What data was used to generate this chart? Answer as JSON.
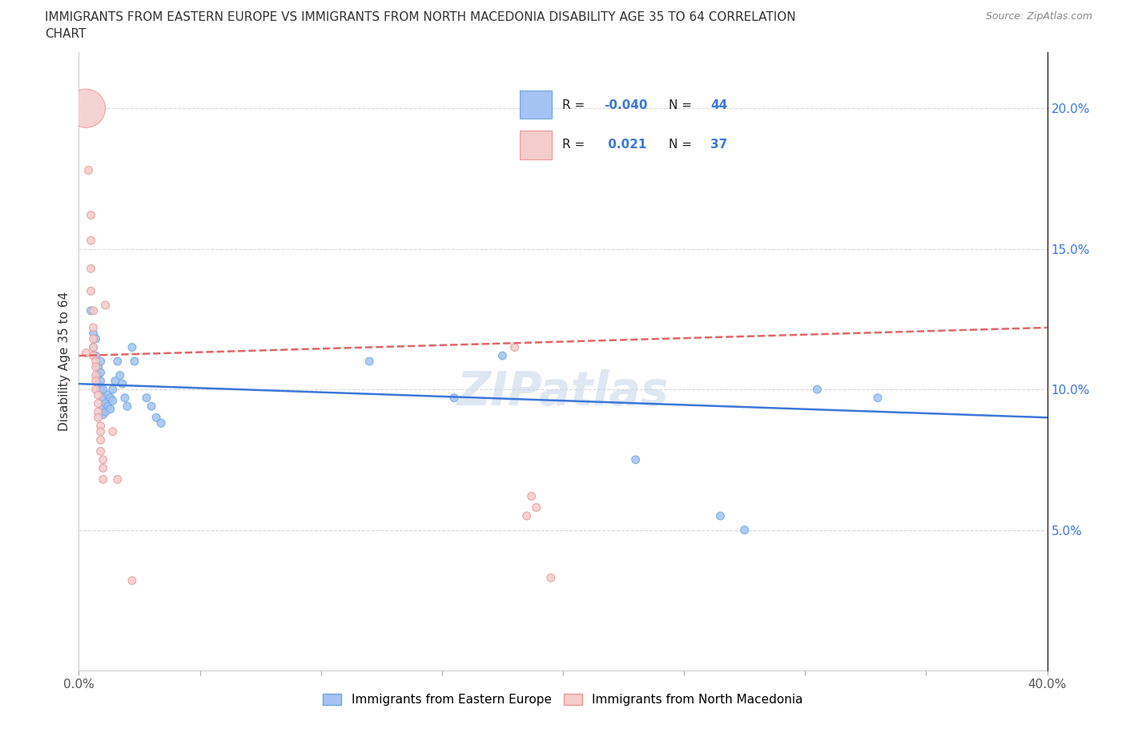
{
  "title_line1": "IMMIGRANTS FROM EASTERN EUROPE VS IMMIGRANTS FROM NORTH MACEDONIA DISABILITY AGE 35 TO 64 CORRELATION",
  "title_line2": "CHART",
  "source": "Source: ZipAtlas.com",
  "ylabel": "Disability Age 35 to 64",
  "xlim": [
    0.0,
    0.4
  ],
  "ylim": [
    0.0,
    0.22
  ],
  "blue_color": "#a4c2f4",
  "blue_edge_color": "#6fa8dc",
  "pink_color": "#f4cccc",
  "pink_edge_color": "#ea9999",
  "blue_line_color": "#3c78d8",
  "pink_line_color": "#e06666",
  "R_blue": -0.04,
  "N_blue": 44,
  "R_pink": 0.021,
  "N_pink": 37,
  "legend_label_blue": "Immigrants from Eastern Europe",
  "legend_label_pink": "Immigrants from North Macedonia",
  "watermark": "ZIPatlas",
  "blue_points": [
    [
      0.005,
      0.128
    ],
    [
      0.006,
      0.12
    ],
    [
      0.006,
      0.115
    ],
    [
      0.007,
      0.118
    ],
    [
      0.007,
      0.112
    ],
    [
      0.008,
      0.108
    ],
    [
      0.008,
      0.105
    ],
    [
      0.008,
      0.102
    ],
    [
      0.009,
      0.11
    ],
    [
      0.009,
      0.106
    ],
    [
      0.009,
      0.103
    ],
    [
      0.009,
      0.1
    ],
    [
      0.01,
      0.1
    ],
    [
      0.01,
      0.097
    ],
    [
      0.01,
      0.094
    ],
    [
      0.01,
      0.091
    ],
    [
      0.011,
      0.095
    ],
    [
      0.011,
      0.092
    ],
    [
      0.012,
      0.098
    ],
    [
      0.012,
      0.094
    ],
    [
      0.013,
      0.097
    ],
    [
      0.013,
      0.093
    ],
    [
      0.014,
      0.1
    ],
    [
      0.014,
      0.096
    ],
    [
      0.015,
      0.103
    ],
    [
      0.016,
      0.11
    ],
    [
      0.017,
      0.105
    ],
    [
      0.018,
      0.102
    ],
    [
      0.019,
      0.097
    ],
    [
      0.02,
      0.094
    ],
    [
      0.022,
      0.115
    ],
    [
      0.023,
      0.11
    ],
    [
      0.028,
      0.097
    ],
    [
      0.03,
      0.094
    ],
    [
      0.032,
      0.09
    ],
    [
      0.034,
      0.088
    ],
    [
      0.12,
      0.11
    ],
    [
      0.155,
      0.097
    ],
    [
      0.175,
      0.112
    ],
    [
      0.23,
      0.075
    ],
    [
      0.265,
      0.055
    ],
    [
      0.275,
      0.05
    ],
    [
      0.305,
      0.1
    ],
    [
      0.33,
      0.097
    ]
  ],
  "blue_sizes": [
    50,
    50,
    50,
    50,
    50,
    50,
    50,
    50,
    50,
    50,
    50,
    50,
    50,
    50,
    50,
    50,
    50,
    50,
    50,
    50,
    50,
    50,
    50,
    50,
    50,
    50,
    50,
    50,
    50,
    50,
    50,
    50,
    50,
    50,
    50,
    50,
    50,
    50,
    50,
    50,
    50,
    50,
    50,
    50
  ],
  "pink_points": [
    [
      0.003,
      0.2
    ],
    [
      0.004,
      0.178
    ],
    [
      0.005,
      0.162
    ],
    [
      0.005,
      0.153
    ],
    [
      0.005,
      0.143
    ],
    [
      0.005,
      0.135
    ],
    [
      0.006,
      0.128
    ],
    [
      0.006,
      0.122
    ],
    [
      0.006,
      0.118
    ],
    [
      0.006,
      0.115
    ],
    [
      0.006,
      0.112
    ],
    [
      0.007,
      0.11
    ],
    [
      0.007,
      0.108
    ],
    [
      0.007,
      0.105
    ],
    [
      0.007,
      0.103
    ],
    [
      0.007,
      0.1
    ],
    [
      0.008,
      0.098
    ],
    [
      0.008,
      0.095
    ],
    [
      0.008,
      0.092
    ],
    [
      0.008,
      0.09
    ],
    [
      0.009,
      0.087
    ],
    [
      0.009,
      0.085
    ],
    [
      0.009,
      0.082
    ],
    [
      0.009,
      0.078
    ],
    [
      0.01,
      0.075
    ],
    [
      0.01,
      0.072
    ],
    [
      0.01,
      0.068
    ],
    [
      0.011,
      0.13
    ],
    [
      0.014,
      0.085
    ],
    [
      0.016,
      0.068
    ],
    [
      0.003,
      0.113
    ],
    [
      0.18,
      0.115
    ],
    [
      0.022,
      0.032
    ],
    [
      0.185,
      0.055
    ],
    [
      0.187,
      0.062
    ],
    [
      0.189,
      0.058
    ],
    [
      0.195,
      0.033
    ]
  ],
  "pink_sizes": [
    1200,
    50,
    50,
    50,
    50,
    50,
    50,
    50,
    50,
    50,
    50,
    50,
    50,
    50,
    50,
    50,
    50,
    50,
    50,
    50,
    50,
    50,
    50,
    50,
    50,
    50,
    50,
    50,
    50,
    50,
    50,
    50,
    50,
    50,
    50,
    50,
    50
  ],
  "grid_color": "#d9d9d9",
  "bg_color": "#ffffff"
}
